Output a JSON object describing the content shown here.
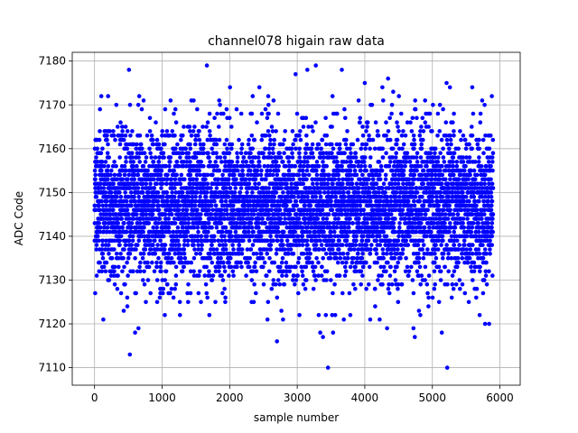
{
  "chart_data": {
    "type": "scatter",
    "title": "channel078 higain raw data",
    "xlabel": "sample number",
    "ylabel": "ADC Code",
    "xlim": [
      -330,
      6300
    ],
    "ylim": [
      7106,
      7182
    ],
    "xticks": [
      0,
      1000,
      2000,
      3000,
      4000,
      5000,
      6000
    ],
    "yticks": [
      7110,
      7120,
      7130,
      7140,
      7150,
      7160,
      7170,
      7180
    ],
    "grid": true,
    "legend": "none",
    "marker_color": "#0000ff",
    "n_points": 5900,
    "center": 7147,
    "band_low": 7133,
    "band_high": 7160,
    "points": [
      {
        "x": 509,
        "y": 7178
      },
      {
        "x": 1663,
        "y": 7179
      },
      {
        "x": 3275,
        "y": 7179
      },
      {
        "x": 3150,
        "y": 7178
      },
      {
        "x": 3660,
        "y": 7178
      },
      {
        "x": 2975,
        "y": 7177
      },
      {
        "x": 4345,
        "y": 7176
      },
      {
        "x": 4260,
        "y": 7174
      },
      {
        "x": 4000,
        "y": 7175
      },
      {
        "x": 2005,
        "y": 7174
      },
      {
        "x": 2440,
        "y": 7174
      },
      {
        "x": 5210,
        "y": 7175
      },
      {
        "x": 5260,
        "y": 7174
      },
      {
        "x": 5590,
        "y": 7174
      },
      {
        "x": 4420,
        "y": 7173
      },
      {
        "x": 100,
        "y": 7172
      },
      {
        "x": 5880,
        "y": 7172
      },
      {
        "x": 523,
        "y": 7113
      },
      {
        "x": 3455,
        "y": 7110
      },
      {
        "x": 5220,
        "y": 7110
      },
      {
        "x": 2700,
        "y": 7116
      },
      {
        "x": 3340,
        "y": 7118
      },
      {
        "x": 3380,
        "y": 7117
      },
      {
        "x": 3530,
        "y": 7118
      },
      {
        "x": 4740,
        "y": 7117
      },
      {
        "x": 4720,
        "y": 7119
      },
      {
        "x": 5140,
        "y": 7118
      },
      {
        "x": 4330,
        "y": 7119
      },
      {
        "x": 600,
        "y": 7118
      },
      {
        "x": 650,
        "y": 7119
      },
      {
        "x": 130,
        "y": 7121
      },
      {
        "x": 2560,
        "y": 7121
      },
      {
        "x": 2790,
        "y": 7121
      },
      {
        "x": 3690,
        "y": 7121
      },
      {
        "x": 4080,
        "y": 7121
      },
      {
        "x": 4220,
        "y": 7121
      },
      {
        "x": 5780,
        "y": 7120
      },
      {
        "x": 5840,
        "y": 7120
      },
      {
        "x": 5700,
        "y": 7122
      }
    ]
  }
}
